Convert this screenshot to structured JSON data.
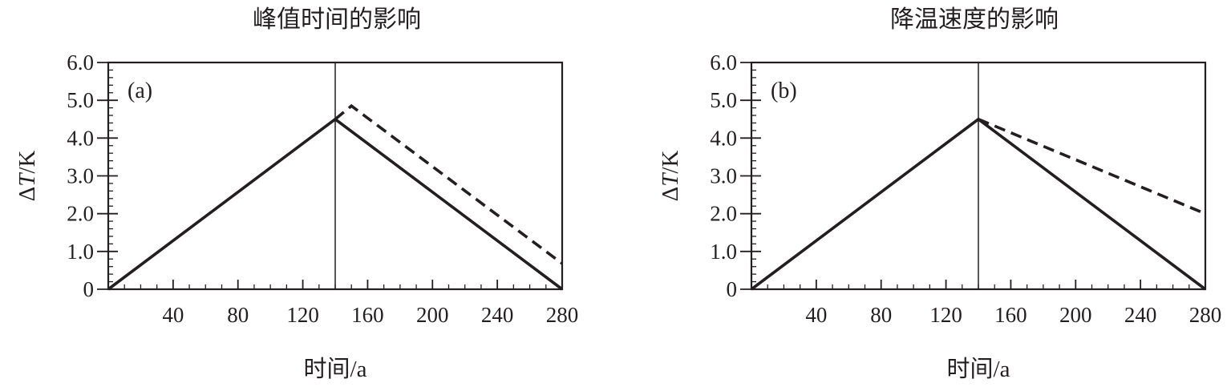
{
  "chart_data": [
    {
      "type": "line",
      "panel_label": "(a)",
      "title": "峰值时间的影响",
      "xlabel": "时间/a",
      "ylabel_delta": "Δ",
      "ylabel_var": "T",
      "ylabel_unit": "/K",
      "xlim": [
        0,
        280
      ],
      "ylim": [
        0,
        6.0
      ],
      "x_ticks": [
        40,
        80,
        120,
        160,
        200,
        240,
        280
      ],
      "x_tick_labels": [
        "40",
        "80",
        "120",
        "160",
        "200",
        "240",
        "280"
      ],
      "y_ticks": [
        0,
        1,
        2,
        3,
        4,
        5,
        6
      ],
      "y_tick_labels": [
        "0",
        "1.0",
        "2.0",
        "3.0",
        "4.0",
        "5.0",
        "6.0"
      ],
      "vline_x": 140,
      "series": [
        {
          "style": "solid",
          "x": [
            0,
            140,
            280
          ],
          "y": [
            0,
            4.5,
            0
          ]
        },
        {
          "style": "dashed",
          "x": [
            140,
            150,
            280
          ],
          "y": [
            4.5,
            4.85,
            0.68
          ]
        }
      ]
    },
    {
      "type": "line",
      "panel_label": "(b)",
      "title": "降温速度的影响",
      "xlabel": "时间/a",
      "ylabel_delta": "Δ",
      "ylabel_var": "T",
      "ylabel_unit": "/K",
      "xlim": [
        0,
        280
      ],
      "ylim": [
        0,
        6.0
      ],
      "x_ticks": [
        40,
        80,
        120,
        160,
        200,
        240,
        280
      ],
      "x_tick_labels": [
        "40",
        "80",
        "120",
        "160",
        "200",
        "240",
        "280"
      ],
      "y_ticks": [
        0,
        1,
        2,
        3,
        4,
        5,
        6
      ],
      "y_tick_labels": [
        "0",
        "1.0",
        "2.0",
        "3.0",
        "4.0",
        "5.0",
        "6.0"
      ],
      "vline_x": 140,
      "series": [
        {
          "style": "solid",
          "x": [
            0,
            140,
            280
          ],
          "y": [
            0,
            4.5,
            0
          ]
        },
        {
          "style": "dashed",
          "x": [
            140,
            280
          ],
          "y": [
            4.5,
            2.0
          ]
        }
      ]
    }
  ]
}
